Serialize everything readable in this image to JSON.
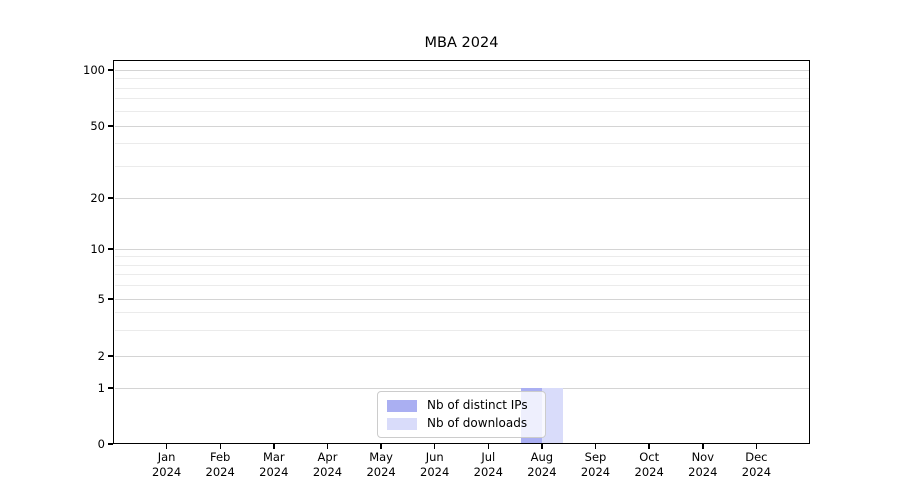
{
  "chart_data": {
    "type": "bar",
    "title": "MBA 2024",
    "categories": [
      "Jan",
      "Feb",
      "Mar",
      "Apr",
      "May",
      "Jun",
      "Jul",
      "Aug",
      "Sep",
      "Oct",
      "Nov",
      "Dec"
    ],
    "x_year_label": "2024",
    "series": [
      {
        "name": "Nb of distinct IPs",
        "color": "#aaaff2",
        "values": [
          0,
          0,
          0,
          0,
          0,
          0,
          0,
          1,
          0,
          0,
          0,
          0
        ]
      },
      {
        "name": "Nb of downloads",
        "color": "#d9dcfa",
        "values": [
          0,
          0,
          0,
          0,
          0,
          0,
          0,
          1,
          0,
          0,
          0,
          0
        ]
      }
    ],
    "yscale": "symlog",
    "y_tick_labels": [
      100,
      50,
      20,
      10,
      5,
      2,
      1,
      0
    ],
    "y_minor_ticks": [
      3,
      4,
      6,
      7,
      8,
      9,
      30,
      40,
      60,
      70,
      80,
      90
    ],
    "y_axis_range_visible": [
      0,
      100
    ],
    "xlabel": "",
    "ylabel": "",
    "grid": true,
    "legend_position": "lower center"
  }
}
